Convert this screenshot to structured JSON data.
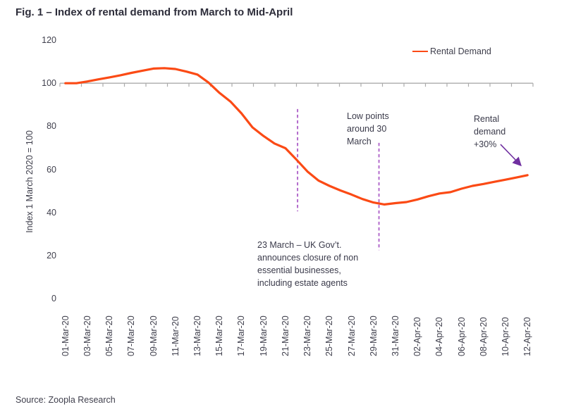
{
  "figure": {
    "title": "Fig. 1 – Index of rental demand from March to Mid-April",
    "source": "Source: Zoopla Research"
  },
  "legend": {
    "label": "Rental Demand"
  },
  "chart_data": {
    "type": "line",
    "title": "Fig. 1 – Index of rental demand from March to Mid-April",
    "xlabel": "",
    "ylabel": "Index 1 March 2020 = 100",
    "ylim": [
      0,
      120
    ],
    "y_ticks": [
      120,
      100,
      80,
      60,
      40,
      20,
      0
    ],
    "baseline_value": 100,
    "grid": "off",
    "legend_position": "top-right",
    "x_tick_labels": [
      "01-Mar-20",
      "03-Mar-20",
      "05-Mar-20",
      "07-Mar-20",
      "09-Mar-20",
      "11-Mar-20",
      "13-Mar-20",
      "15-Mar-20",
      "17-Mar-20",
      "19-Mar-20",
      "21-Mar-20",
      "23-Mar-20",
      "25-Mar-20",
      "27-Mar-20",
      "29-Mar-20",
      "31-Mar-20",
      "02-Apr-20",
      "04-Apr-20",
      "06-Apr-20",
      "08-Apr-20",
      "10-Apr-20",
      "12-Apr-20"
    ],
    "series": [
      {
        "name": "Rental Demand",
        "color": "#FB4A15",
        "x_days": "daily from 01-Mar-20 to 12-Apr-20",
        "values": [
          100,
          100,
          100.8,
          101.8,
          102.7,
          103.7,
          104.8,
          105.8,
          106.8,
          107,
          106.6,
          105.4,
          104,
          100.3,
          95.5,
          91.5,
          86,
          79.5,
          75.5,
          72,
          69.8,
          64.5,
          59,
          54.8,
          52.3,
          50.2,
          48.3,
          46.2,
          44.6,
          43.7,
          44.3,
          44.8,
          46,
          47.5,
          48.8,
          49.4,
          51,
          52.3,
          53.2,
          54.2,
          55.2,
          56.2,
          57.3
        ]
      }
    ],
    "axis_color": "#ABABAB",
    "annotations": {
      "dashed_lines": [
        {
          "name": "gov-announcement-line",
          "day": 22.1,
          "v_top": 88,
          "v_bottom": 40.5,
          "color": "#B36BCC"
        },
        {
          "name": "low-point-line",
          "day": 29.5,
          "v_top": 72.3,
          "v_bottom": 22.5,
          "color": "#B36BCC"
        }
      ],
      "arrow": {
        "from_day": 40.55,
        "from_value": 71.6,
        "to_day": 42.4,
        "to_value": 61.8,
        "color": "#7030A0"
      },
      "notes": [
        {
          "id": "gov_note",
          "text": "23 March – UK Gov’t. announces closure of non essential businesses, including estate agents"
        },
        {
          "id": "low_note",
          "text": "Low points around 30 March"
        },
        {
          "id": "demand_note",
          "text": "Rental demand +30%"
        }
      ]
    }
  }
}
